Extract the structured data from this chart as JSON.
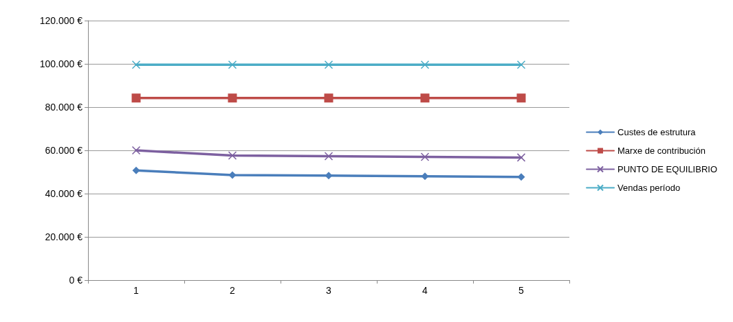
{
  "chart_data": {
    "type": "line",
    "categories": [
      "1",
      "2",
      "3",
      "4",
      "5"
    ],
    "series": [
      {
        "name": "Custes de estrutura",
        "color": "#4a7ebb",
        "marker": "diamond",
        "values": [
          50700,
          48600,
          48300,
          48000,
          47700
        ]
      },
      {
        "name": "Marxe de contribución",
        "color": "#be4b48",
        "marker": "square",
        "values": [
          84200,
          84200,
          84200,
          84200,
          84200
        ]
      },
      {
        "name": "PUNTO DE EQUILIBRIO",
        "color": "#7d60a0",
        "marker": "cross",
        "values": [
          60000,
          57600,
          57300,
          57000,
          56700
        ]
      },
      {
        "name": "Vendas período",
        "color": "#4bacc6",
        "marker": "cross",
        "values": [
          99600,
          99600,
          99600,
          99600,
          99600
        ]
      }
    ],
    "ylim": [
      0,
      120000
    ],
    "yticks": [
      {
        "value": 0,
        "label": "0 €"
      },
      {
        "value": 20000,
        "label": "20.000 €"
      },
      {
        "value": 40000,
        "label": "40.000 €"
      },
      {
        "value": 60000,
        "label": "60.000 €"
      },
      {
        "value": 80000,
        "label": "80.000 €"
      },
      {
        "value": 100000,
        "label": "100.000 €"
      },
      {
        "value": 120000,
        "label": "120.000 €"
      }
    ],
    "grid": "y",
    "legend": "right",
    "line_style": "solid"
  }
}
